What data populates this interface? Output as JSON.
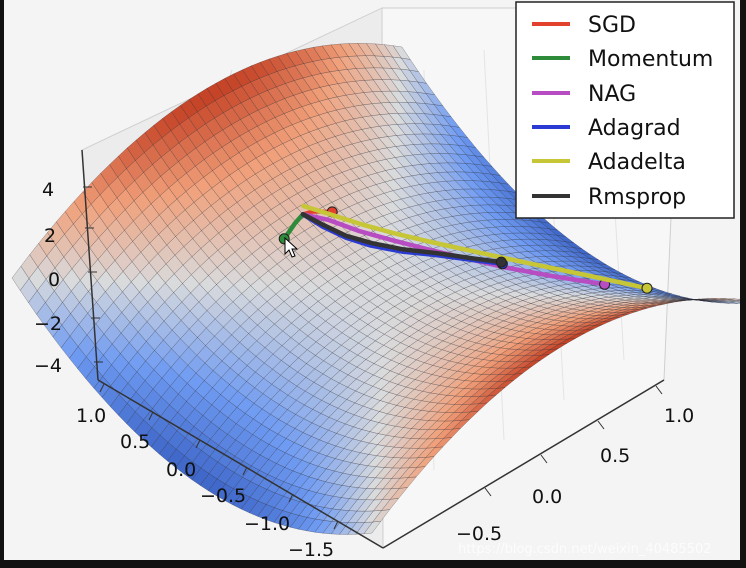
{
  "chart_data": {
    "type": "surface3d",
    "surface": "saddle z = x^2 - y^2",
    "colormap": [
      "#3b63c6",
      "#6f9bf2",
      "#d9dadc",
      "#f0a07a",
      "#c13a1e"
    ],
    "z_ticks": [
      "4",
      "2",
      "0",
      "−2",
      "−4"
    ],
    "y_ticks": [
      "1.0",
      "0.5",
      "0.0",
      "−0.5",
      "−1.0",
      "−1.5"
    ],
    "x_ticks": [
      "1.0",
      "0.5",
      "0.0",
      "−0.5"
    ],
    "zlim": [
      -4,
      4
    ],
    "series": [
      {
        "name": "SGD",
        "color": "#e2412d",
        "points": [
          [
            0.7,
            0.0
          ],
          [
            0.69,
            0.05
          ],
          [
            0.66,
            0.11
          ],
          [
            0.63,
            0.16
          ]
        ]
      },
      {
        "name": "Momentum",
        "color": "#2e8b3a",
        "points": [
          [
            0.7,
            0.0
          ],
          [
            0.68,
            -0.08
          ],
          [
            0.64,
            -0.2
          ]
        ]
      },
      {
        "name": "NAG",
        "color": "#b84cc2",
        "points": [
          [
            0.7,
            0.0
          ],
          [
            0.6,
            0.1
          ],
          [
            0.45,
            0.2
          ],
          [
            0.3,
            0.32
          ],
          [
            0.14,
            0.45
          ],
          [
            -0.02,
            0.58
          ],
          [
            -0.2,
            0.72
          ],
          [
            -0.4,
            0.9
          ],
          [
            -0.6,
            1.12
          ]
        ]
      },
      {
        "name": "Adagrad",
        "color": "#2a3ad2",
        "points": [
          [
            0.7,
            0.0
          ],
          [
            0.58,
            0.04
          ],
          [
            0.45,
            0.1
          ],
          [
            0.33,
            0.18
          ],
          [
            0.2,
            0.3
          ],
          [
            0.08,
            0.45
          ],
          [
            -0.05,
            0.6
          ],
          [
            -0.16,
            0.74
          ]
        ]
      },
      {
        "name": "Adadelta",
        "color": "#c6c637",
        "points": [
          [
            0.74,
            0.04
          ],
          [
            0.62,
            0.14
          ],
          [
            0.48,
            0.25
          ],
          [
            0.34,
            0.37
          ],
          [
            0.18,
            0.52
          ],
          [
            0.0,
            0.7
          ],
          [
            -0.2,
            0.9
          ],
          [
            -0.42,
            1.14
          ],
          [
            -0.65,
            1.4
          ]
        ]
      },
      {
        "name": "Rmsprop",
        "color": "#333333",
        "points": [
          [
            0.7,
            0.0
          ],
          [
            0.59,
            0.05
          ],
          [
            0.46,
            0.11
          ],
          [
            0.34,
            0.2
          ],
          [
            0.21,
            0.32
          ],
          [
            0.09,
            0.47
          ],
          [
            -0.04,
            0.62
          ],
          [
            -0.14,
            0.75
          ]
        ]
      }
    ]
  },
  "watermark": "https://blog.csdn.net/weixin_40485502"
}
